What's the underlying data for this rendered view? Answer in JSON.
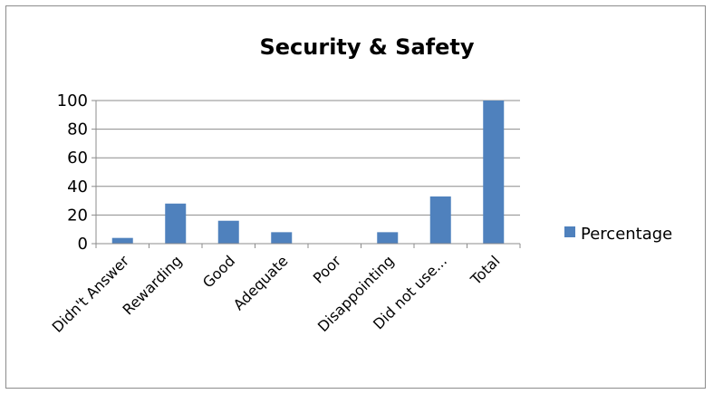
{
  "chart_data": {
    "type": "bar",
    "title": "Security & Safety",
    "categories": [
      "Didn't Answer",
      "Rewarding",
      "Good",
      "Adequate",
      "Poor",
      "Disappointing",
      "Did not use...",
      "Total"
    ],
    "series": [
      {
        "name": "Percentage",
        "values": [
          4,
          28,
          16,
          8,
          0,
          8,
          33,
          100
        ],
        "color": "#4f81bd"
      }
    ],
    "ylim": [
      0,
      100
    ],
    "yticks": [
      "0",
      "20",
      "40",
      "60",
      "80",
      "100"
    ],
    "xlabel": "",
    "ylabel": "",
    "grid": "horizontal",
    "legend_position": "right"
  }
}
